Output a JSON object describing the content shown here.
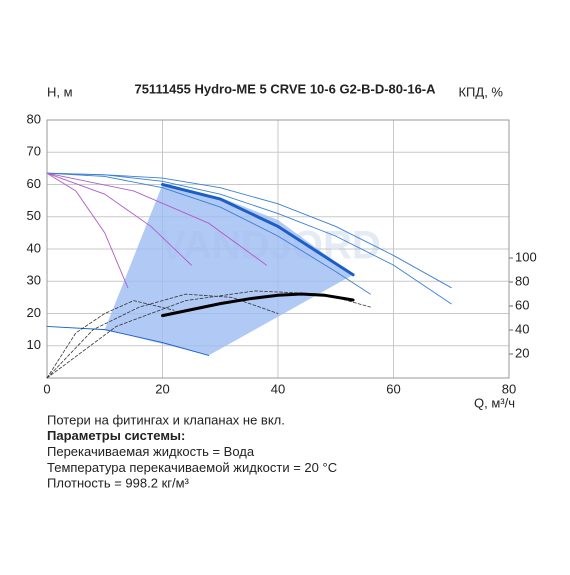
{
  "chart_data": {
    "type": "line",
    "title": "75111455 Hydro-ME 5 CRVE 10-6 G2-B-D-80-16-A",
    "y_label": "H, м",
    "y2_label": "КПД, %",
    "x_label": "Q, м³/ч",
    "watermark": "VANDJORD",
    "xlim": [
      0,
      80
    ],
    "xticks": [
      0,
      20,
      40,
      60,
      80
    ],
    "ylim": [
      0,
      80
    ],
    "yticks": [
      10,
      20,
      30,
      40,
      50,
      60,
      70,
      80
    ],
    "y2lim": [
      0,
      215
    ],
    "y2ticks": [
      20,
      40,
      60,
      80,
      100
    ],
    "grid": true,
    "region": {
      "color": "#9dbbf3",
      "x": [
        10,
        20,
        30,
        40,
        53,
        28,
        10
      ],
      "values": [
        15,
        60,
        56,
        49,
        32,
        7,
        15
      ]
    },
    "series": [
      {
        "color": "#3a7fd5",
        "style": "thin",
        "x": [
          0,
          10,
          20,
          30,
          40,
          50,
          60,
          70
        ],
        "values": [
          63.5,
          63,
          61,
          57,
          51,
          44,
          35,
          23
        ]
      },
      {
        "color": "#3a7fd5",
        "style": "thin",
        "x": [
          0,
          10,
          20,
          30,
          40,
          50,
          60,
          70
        ],
        "values": [
          63.5,
          63,
          62,
          59,
          54,
          47,
          38,
          28
        ]
      },
      {
        "color": "#3a7fd5",
        "style": "thin",
        "x": [
          0,
          10,
          20,
          30,
          40,
          50,
          56
        ],
        "values": [
          63.5,
          62.5,
          59,
          53,
          44,
          33,
          26
        ]
      },
      {
        "color": "#1a5fc8",
        "style": "thin",
        "x": [
          0,
          10,
          20,
          28
        ],
        "values": [
          16,
          15,
          11,
          7
        ]
      },
      {
        "color": "#b05cc8",
        "style": "thin",
        "x": [
          0,
          5,
          10,
          14
        ],
        "values": [
          63.5,
          58,
          45,
          28
        ]
      },
      {
        "color": "#b05cc8",
        "style": "thin",
        "x": [
          0,
          10,
          18,
          25
        ],
        "values": [
          63.5,
          57,
          47,
          35
        ]
      },
      {
        "color": "#b05cc8",
        "style": "thin",
        "x": [
          0,
          15,
          28,
          38
        ],
        "values": [
          63.5,
          58,
          48,
          35
        ]
      },
      {
        "color": "#333333",
        "style": "dashed",
        "x": [
          0,
          5,
          10,
          15,
          22
        ],
        "values": [
          0,
          14,
          20,
          24,
          21
        ]
      },
      {
        "color": "#333333",
        "style": "dashed",
        "x": [
          0,
          8,
          16,
          24,
          32,
          40
        ],
        "values": [
          0,
          15,
          22,
          26,
          25,
          20
        ]
      },
      {
        "color": "#333333",
        "style": "dashed",
        "x": [
          0,
          12,
          24,
          36,
          48,
          56
        ],
        "values": [
          0,
          16,
          24,
          27,
          26,
          22
        ]
      },
      {
        "color": "#1a5fc8",
        "style": "bold",
        "x": [
          20,
          30,
          40,
          53
        ],
        "values": [
          60,
          55.5,
          47,
          32
        ]
      },
      {
        "color": "#000000",
        "style": "bold",
        "axis": "y2",
        "x": [
          20,
          25,
          30,
          35,
          40,
          44,
          48,
          53
        ],
        "values": [
          52,
          57,
          62,
          66,
          69,
          70,
          69,
          65
        ]
      }
    ]
  },
  "notes": [
    "Потери на фитингах и клапанах не вкл.",
    "Параметры системы:",
    "Перекачиваемая жидкость = Вода",
    "Температура перекачиваемой жидкости = 20 °C",
    "Плотность = 998.2 кг/м³"
  ]
}
